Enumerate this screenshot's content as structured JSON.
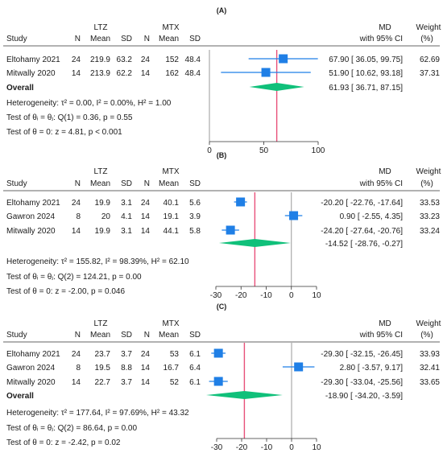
{
  "chart_data": [
    {
      "type": "forest",
      "panel_label": "(A)",
      "group1_label": "LTZ",
      "group2_label": "MTX",
      "columns": {
        "study": "Study",
        "n1": "N",
        "mean1": "Mean",
        "sd1": "SD",
        "n2": "N",
        "mean2": "Mean",
        "sd2": "SD",
        "effect_line1": "MD",
        "effect_line2": "with 95% CI",
        "weight_line1": "Weight",
        "weight_line2": "(%)"
      },
      "studies": [
        {
          "name": "Eltohamy 2021",
          "n1": "24",
          "mean1": "219.9",
          "sd1": "63.2",
          "n2": "24",
          "mean2": "152",
          "sd2": "48.4",
          "md": 67.9,
          "lo": 36.05,
          "hi": 99.75,
          "ci_text": "67.90 [ 36.05,  99.75]",
          "weight": "62.69"
        },
        {
          "name": "Mitwally 2020",
          "n1": "14",
          "mean1": "213.9",
          "sd1": "62.2",
          "n2": "14",
          "mean2": "162",
          "sd2": "48.4",
          "md": 51.9,
          "lo": 10.62,
          "hi": 93.18,
          "ci_text": "51.90 [ 10.62,  93.18]",
          "weight": "37.31"
        }
      ],
      "overall": {
        "label": "Overall",
        "md": 61.93,
        "lo": 36.71,
        "hi": 87.15,
        "ci_text": "61.93 [ 36.71,  87.15]"
      },
      "stats": [
        "Heterogeneity: τ² = 0.00, I² = 0.00%, H² = 1.00",
        "Test of θᵢ = θⱼ: Q(1) = 0.36, p = 0.55",
        "Test of θ = 0: z = 4.81, p < 0.001"
      ],
      "xlim": [
        0,
        100
      ],
      "xticks": [
        0,
        50,
        100
      ],
      "colors": {
        "square": "#1f7fe6",
        "diamond": "#10c07a",
        "ci": "#1f7fe6",
        "overall_line": "#e8507a",
        "null_line": "#999999"
      }
    },
    {
      "type": "forest",
      "panel_label": "(B)",
      "group1_label": "LTZ",
      "group2_label": "MTX",
      "columns": {
        "study": "Study",
        "n1": "N",
        "mean1": "Mean",
        "sd1": "SD",
        "n2": "N",
        "mean2": "Mean",
        "sd2": "SD",
        "effect_line1": "MD",
        "effect_line2": "with 95% CI",
        "weight_line1": "Weight",
        "weight_line2": "(%)"
      },
      "studies": [
        {
          "name": "Eltohamy 2021",
          "n1": "24",
          "mean1": "19.9",
          "sd1": "3.1",
          "n2": "24",
          "mean2": "40.1",
          "sd2": "5.6",
          "md": -20.2,
          "lo": -22.76,
          "hi": -17.64,
          "ci_text": "-20.20 [ -22.76, -17.64]",
          "weight": "33.53"
        },
        {
          "name": "Gawron 2024",
          "n1": "8",
          "mean1": "20",
          "sd1": "4.1",
          "n2": "14",
          "mean2": "19.1",
          "sd2": "3.9",
          "md": 0.9,
          "lo": -2.55,
          "hi": 4.35,
          "ci_text": "0.90 [  -2.55,    4.35]",
          "weight": "33.23"
        },
        {
          "name": "Mitwally 2020",
          "n1": "14",
          "mean1": "19.9",
          "sd1": "3.1",
          "n2": "14",
          "mean2": "44.1",
          "sd2": "5.8",
          "md": -24.2,
          "lo": -27.64,
          "hi": -20.76,
          "ci_text": "-24.20 [ -27.64, -20.76]",
          "weight": "33.24"
        }
      ],
      "overall": {
        "label": "",
        "md": -14.52,
        "lo": -28.76,
        "hi": -0.27,
        "ci_text": "-14.52 [ -28.76,   -0.27]"
      },
      "stats": [
        "Heterogeneity: τ² = 155.82, I² = 98.39%, H² = 62.10",
        "Test of θᵢ = θⱼ: Q(2) = 124.21, p = 0.00",
        "Test of θ = 0: z = -2.00, p = 0.046"
      ],
      "xlim": [
        -30,
        10
      ],
      "xticks": [
        -30,
        -20,
        -10,
        0,
        10
      ],
      "colors": {
        "square": "#1f7fe6",
        "diamond": "#10c07a",
        "ci": "#1f7fe6",
        "overall_line": "#e8507a",
        "null_line": "#999999"
      }
    },
    {
      "type": "forest",
      "panel_label": "(C)",
      "group1_label": "LTZ",
      "group2_label": "MTX",
      "columns": {
        "study": "Study",
        "n1": "N",
        "mean1": "Mean",
        "sd1": "SD",
        "n2": "N",
        "mean2": "Mean",
        "sd2": "SD",
        "effect_line1": "MD",
        "effect_line2": "with 95% CI",
        "weight_line1": "Weight",
        "weight_line2": "(%)"
      },
      "studies": [
        {
          "name": "Eltohamy 2021",
          "n1": "24",
          "mean1": "23.7",
          "sd1": "3.7",
          "n2": "24",
          "mean2": "53",
          "sd2": "6.1",
          "md": -29.3,
          "lo": -32.15,
          "hi": -26.45,
          "ci_text": "-29.30 [ -32.15, -26.45]",
          "weight": "33.93"
        },
        {
          "name": "Gawron 2024",
          "n1": "8",
          "mean1": "19.5",
          "sd1": "8.8",
          "n2": "14",
          "mean2": "16.7",
          "sd2": "6.4",
          "md": 2.8,
          "lo": -3.57,
          "hi": 9.17,
          "ci_text": "2.80 [  -3.57,    9.17]",
          "weight": "32.41"
        },
        {
          "name": "Mitwally 2020",
          "n1": "14",
          "mean1": "22.7",
          "sd1": "3.7",
          "n2": "14",
          "mean2": "52",
          "sd2": "6.1",
          "md": -29.3,
          "lo": -33.04,
          "hi": -25.56,
          "ci_text": "-29.30 [ -33.04, -25.56]",
          "weight": "33.65"
        }
      ],
      "overall": {
        "label": "Overall",
        "md": -18.9,
        "lo": -34.2,
        "hi": -3.59,
        "ci_text": "-18.90 [ -34.20,   -3.59]"
      },
      "stats": [
        "Heterogeneity: τ² = 177.64, I² = 97.69%, H² = 43.32",
        "Test of θᵢ = θⱼ: Q(2) = 86.64, p = 0.00",
        "Test of θ = 0: z = -2.42, p = 0.02"
      ],
      "xlim": [
        -30,
        10
      ],
      "xticks": [
        -30,
        -20,
        -10,
        0,
        10
      ],
      "colors": {
        "square": "#1f7fe6",
        "diamond": "#10c07a",
        "ci": "#1f7fe6",
        "overall_line": "#e8507a",
        "null_line": "#999999"
      }
    }
  ]
}
